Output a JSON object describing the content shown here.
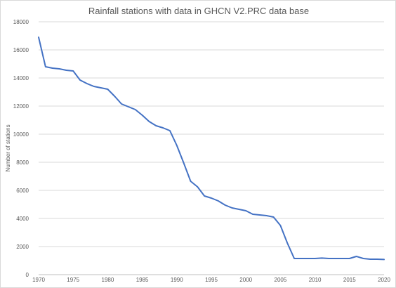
{
  "chart_data": {
    "type": "line",
    "title": "Rainfall stations with data in GHCN V2.PRC data base",
    "xlabel": "",
    "ylabel": "Number of stations",
    "xlim": [
      1970,
      2020
    ],
    "ylim": [
      0,
      18000
    ],
    "x_ticks": [
      1970,
      1975,
      1980,
      1985,
      1990,
      1995,
      2000,
      2005,
      2010,
      2015,
      2020
    ],
    "y_ticks": [
      0,
      2000,
      4000,
      6000,
      8000,
      10000,
      12000,
      14000,
      16000,
      18000
    ],
    "grid": true,
    "legend": "none",
    "series": [
      {
        "color": "#4472c4",
        "x": [
          1970,
          1971,
          1972,
          1973,
          1974,
          1975,
          1976,
          1977,
          1978,
          1979,
          1980,
          1981,
          1982,
          1983,
          1984,
          1985,
          1986,
          1987,
          1988,
          1989,
          1990,
          1991,
          1992,
          1993,
          1994,
          1995,
          1996,
          1997,
          1998,
          1999,
          2000,
          2001,
          2002,
          2003,
          2004,
          2005,
          2006,
          2007,
          2008,
          2009,
          2010,
          2011,
          2012,
          2013,
          2014,
          2015,
          2016,
          2017,
          2018,
          2019,
          2020
        ],
        "values": [
          16900,
          14800,
          14700,
          14650,
          14550,
          14500,
          13850,
          13600,
          13400,
          13300,
          13200,
          12700,
          12150,
          11950,
          11750,
          11350,
          10900,
          10600,
          10450,
          10250,
          9200,
          7950,
          6650,
          6250,
          5600,
          5450,
          5250,
          4950,
          4750,
          4650,
          4550,
          4300,
          4250,
          4200,
          4100,
          3500,
          2250,
          1150,
          1150,
          1150,
          1150,
          1180,
          1150,
          1150,
          1150,
          1150,
          1300,
          1150,
          1100,
          1100,
          1080
        ]
      }
    ]
  }
}
